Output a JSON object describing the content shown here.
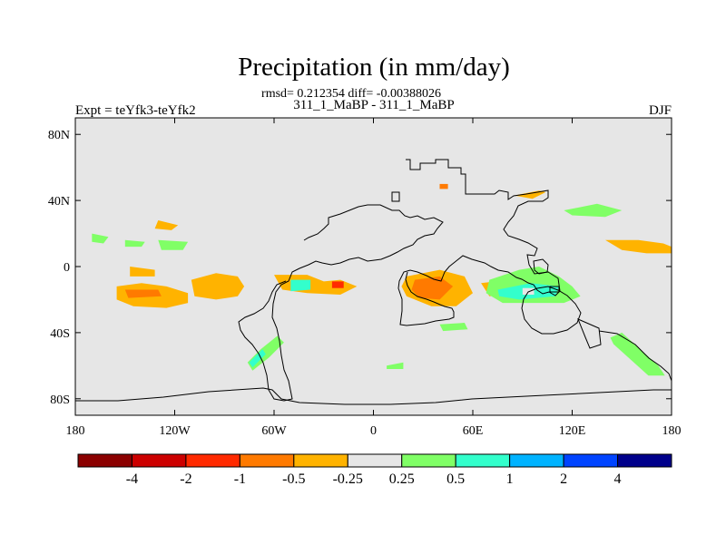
{
  "chart_data": {
    "type": "heatmap",
    "title": "Precipitation (in mm/day)",
    "stats": "rmsd= 0.212354 diff= -0.00388026",
    "subtitle": "311_1_MaBP - 311_1_MaBP",
    "left_label": "Expt = teYfk3-teYfk2",
    "right_label": "DJF",
    "x_range": [
      -180,
      180
    ],
    "y_range": [
      -90,
      90
    ],
    "x_ticks": [
      {
        "value": -180,
        "label": "180"
      },
      {
        "value": -120,
        "label": "120W"
      },
      {
        "value": -60,
        "label": "60W"
      },
      {
        "value": 0,
        "label": "0"
      },
      {
        "value": 60,
        "label": "60E"
      },
      {
        "value": 120,
        "label": "120E"
      },
      {
        "value": 180,
        "label": "180"
      }
    ],
    "y_ticks": [
      {
        "value": 80,
        "label": "80N"
      },
      {
        "value": 40,
        "label": "40N"
      },
      {
        "value": 0,
        "label": "0"
      },
      {
        "value": -40,
        "label": "40S"
      },
      {
        "value": -80,
        "label": "80S"
      }
    ],
    "colorbar": {
      "colors": [
        "#8b0000",
        "#cc0000",
        "#ff2a00",
        "#ff7a00",
        "#ffb300",
        "#e6e6e6",
        "#80ff66",
        "#33ffcc",
        "#00b3ff",
        "#0044ff",
        "#00008b"
      ],
      "labels": [
        "-4",
        "-2",
        "-1",
        "-0.5",
        "-0.25",
        "0.25",
        "0.5",
        "1",
        "2",
        "4"
      ]
    },
    "anomaly_regions": [
      {
        "color": "#ffb300",
        "points": [
          [
            -155,
            -12
          ],
          [
            -140,
            -10
          ],
          [
            -125,
            -12
          ],
          [
            -112,
            -16
          ],
          [
            -112,
            -22
          ],
          [
            -125,
            -25
          ],
          [
            -145,
            -24
          ],
          [
            -155,
            -20
          ]
        ]
      },
      {
        "color": "#ff7a00",
        "points": [
          [
            -150,
            -14
          ],
          [
            -130,
            -14
          ],
          [
            -128,
            -18
          ],
          [
            -148,
            -19
          ]
        ]
      },
      {
        "color": "#ffb300",
        "points": [
          [
            -110,
            -8
          ],
          [
            -95,
            -4
          ],
          [
            -82,
            -6
          ],
          [
            -78,
            -12
          ],
          [
            -82,
            -18
          ],
          [
            -95,
            -20
          ],
          [
            -108,
            -18
          ]
        ]
      },
      {
        "color": "#ffb300",
        "points": [
          [
            -147,
            0
          ],
          [
            -132,
            -2
          ],
          [
            -132,
            -6
          ],
          [
            -147,
            -6
          ]
        ]
      },
      {
        "color": "#ffb300",
        "points": [
          [
            -130,
            28
          ],
          [
            -118,
            25
          ],
          [
            -122,
            22
          ],
          [
            -132,
            23
          ]
        ]
      },
      {
        "color": "#80ff66",
        "points": [
          [
            -170,
            20
          ],
          [
            -160,
            18
          ],
          [
            -163,
            14
          ],
          [
            -170,
            15
          ]
        ]
      },
      {
        "color": "#80ff66",
        "points": [
          [
            -150,
            16
          ],
          [
            -138,
            15
          ],
          [
            -140,
            12
          ],
          [
            -150,
            12
          ]
        ]
      },
      {
        "color": "#80ff66",
        "points": [
          [
            -130,
            16
          ],
          [
            -112,
            15
          ],
          [
            -115,
            10
          ],
          [
            -128,
            10
          ]
        ]
      },
      {
        "color": "#ffb300",
        "points": [
          [
            -60,
            -5
          ],
          [
            -40,
            -5
          ],
          [
            -30,
            -9
          ],
          [
            -20,
            -8
          ],
          [
            -10,
            -12
          ],
          [
            -20,
            -17
          ],
          [
            -40,
            -16
          ],
          [
            -55,
            -14
          ]
        ]
      },
      {
        "color": "#33ffcc",
        "points": [
          [
            -50,
            -8
          ],
          [
            -38,
            -8
          ],
          [
            -38,
            -14
          ],
          [
            -50,
            -15
          ]
        ]
      },
      {
        "color": "#ff2a00",
        "points": [
          [
            -25,
            -9
          ],
          [
            -18,
            -9
          ],
          [
            -18,
            -13
          ],
          [
            -25,
            -13
          ]
        ]
      },
      {
        "color": "#80ff66",
        "points": [
          [
            -68,
            -50
          ],
          [
            -58,
            -42
          ],
          [
            -54,
            -46
          ],
          [
            -63,
            -55
          ],
          [
            -73,
            -63
          ],
          [
            -76,
            -58
          ]
        ]
      },
      {
        "color": "#33ffcc",
        "points": [
          [
            -75,
            -58
          ],
          [
            -67,
            -50
          ],
          [
            -65,
            -53
          ],
          [
            -73,
            -61
          ]
        ]
      },
      {
        "color": "#ffb300",
        "points": [
          [
            20,
            -6
          ],
          [
            40,
            -2
          ],
          [
            55,
            -6
          ],
          [
            60,
            -16
          ],
          [
            50,
            -24
          ],
          [
            35,
            -24
          ],
          [
            20,
            -18
          ],
          [
            17,
            -12
          ]
        ]
      },
      {
        "color": "#ff7a00",
        "points": [
          [
            25,
            -8
          ],
          [
            40,
            -6
          ],
          [
            48,
            -12
          ],
          [
            40,
            -20
          ],
          [
            28,
            -19
          ],
          [
            23,
            -14
          ]
        ]
      },
      {
        "color": "#ffb300",
        "points": [
          [
            65,
            -10
          ],
          [
            82,
            -8
          ],
          [
            85,
            -16
          ],
          [
            70,
            -18
          ]
        ]
      },
      {
        "color": "#80ff66",
        "points": [
          [
            70,
            -8
          ],
          [
            88,
            -2
          ],
          [
            100,
            0
          ],
          [
            112,
            -6
          ],
          [
            120,
            -12
          ],
          [
            125,
            -18
          ],
          [
            115,
            -22
          ],
          [
            95,
            -22
          ],
          [
            78,
            -22
          ],
          [
            68,
            -16
          ]
        ]
      },
      {
        "color": "#33ffcc",
        "points": [
          [
            75,
            -14
          ],
          [
            95,
            -10
          ],
          [
            112,
            -12
          ],
          [
            110,
            -18
          ],
          [
            88,
            -20
          ],
          [
            76,
            -18
          ]
        ]
      },
      {
        "color": "#e6e6e6",
        "points": [
          [
            90,
            -13
          ],
          [
            97,
            -13
          ],
          [
            97,
            -17
          ],
          [
            90,
            -17
          ]
        ]
      },
      {
        "color": "#ff7a00",
        "points": [
          [
            150,
            14
          ],
          [
            170,
            14
          ],
          [
            175,
            10
          ],
          [
            160,
            10
          ]
        ]
      },
      {
        "color": "#ffb300",
        "points": [
          [
            140,
            16
          ],
          [
            160,
            16
          ],
          [
            175,
            14
          ],
          [
            180,
            12
          ],
          [
            180,
            8
          ],
          [
            165,
            8
          ],
          [
            150,
            10
          ]
        ]
      },
      {
        "color": "#80ff66",
        "points": [
          [
            115,
            34
          ],
          [
            135,
            38
          ],
          [
            150,
            34
          ],
          [
            140,
            30
          ],
          [
            120,
            31
          ]
        ]
      },
      {
        "color": "#ffb300",
        "points": [
          [
            85,
            43
          ],
          [
            100,
            46
          ],
          [
            104,
            45
          ],
          [
            96,
            41
          ]
        ]
      },
      {
        "color": "#33ffcc",
        "points": [
          [
            150,
            -43
          ],
          [
            160,
            -50
          ],
          [
            170,
            -60
          ],
          [
            167,
            -63
          ],
          [
            156,
            -56
          ],
          [
            148,
            -48
          ]
        ]
      },
      {
        "color": "#80ff66",
        "points": [
          [
            143,
            -43
          ],
          [
            150,
            -40
          ],
          [
            172,
            -60
          ],
          [
            176,
            -66
          ],
          [
            166,
            -66
          ],
          [
            145,
            -47
          ]
        ]
      },
      {
        "color": "#80ff66",
        "points": [
          [
            40,
            -35
          ],
          [
            55,
            -34
          ],
          [
            57,
            -38
          ],
          [
            42,
            -39
          ]
        ]
      },
      {
        "color": "#80ff66",
        "points": [
          [
            8,
            -60
          ],
          [
            18,
            -58
          ],
          [
            18,
            -62
          ],
          [
            8,
            -62
          ]
        ]
      },
      {
        "color": "#ff7a00",
        "points": [
          [
            40,
            50
          ],
          [
            45,
            50
          ],
          [
            45,
            47
          ],
          [
            40,
            47
          ]
        ]
      }
    ]
  }
}
